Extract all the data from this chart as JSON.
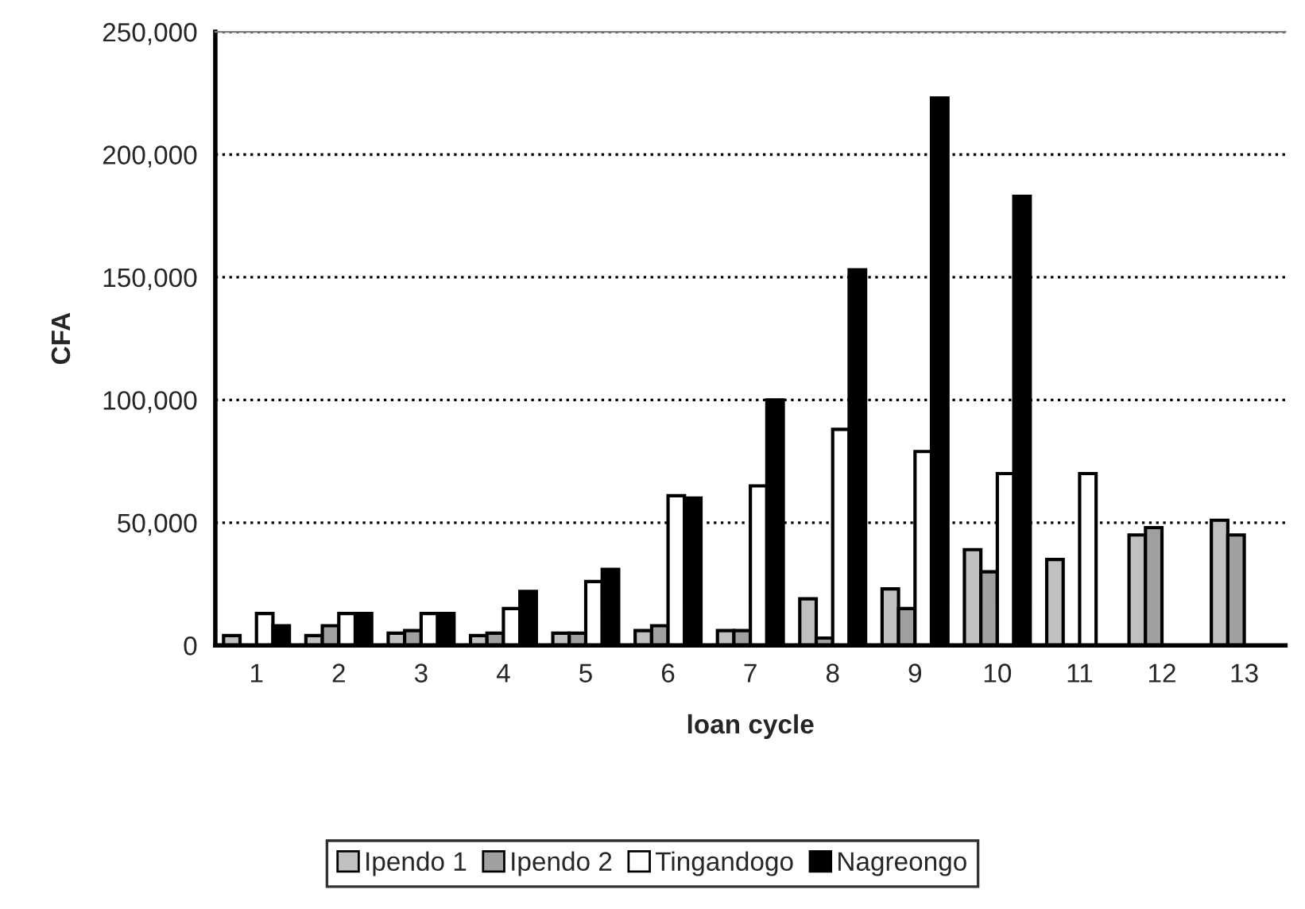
{
  "chart_data": {
    "type": "bar",
    "xlabel": "loan cycle",
    "ylabel": "CFA",
    "categories": [
      "1",
      "2",
      "3",
      "4",
      "5",
      "6",
      "7",
      "8",
      "9",
      "10",
      "11",
      "12",
      "13"
    ],
    "series": [
      {
        "name": "Ipendo 1",
        "color": "#c0c0c0",
        "values": [
          4000,
          4000,
          5000,
          4000,
          5000,
          6000,
          6000,
          19000,
          23000,
          39000,
          35000,
          45000,
          51000
        ]
      },
      {
        "name": "Ipendo 2",
        "color": "#a0a0a0",
        "values": [
          null,
          8000,
          6000,
          5000,
          5000,
          8000,
          6000,
          3000,
          15000,
          30000,
          null,
          48000,
          45000
        ]
      },
      {
        "name": "Tingandogo",
        "color": "#ffffff",
        "values": [
          13000,
          13000,
          13000,
          15000,
          26000,
          61000,
          65000,
          88000,
          79000,
          70000,
          70000,
          null,
          null
        ]
      },
      {
        "name": "Nagreongo",
        "color": "#000000",
        "values": [
          8000,
          13000,
          13000,
          22000,
          31000,
          60000,
          100000,
          153000,
          223000,
          183000,
          null,
          null,
          null
        ]
      }
    ],
    "ylim": [
      0,
      250000
    ],
    "yticks": [
      {
        "value": 0,
        "label": "0"
      },
      {
        "value": 50000,
        "label": "50,000"
      },
      {
        "value": 100000,
        "label": "100,000"
      },
      {
        "value": 150000,
        "label": "150,000"
      },
      {
        "value": 200000,
        "label": "200,000"
      },
      {
        "value": 250000,
        "label": "250,000"
      }
    ],
    "grid": "y",
    "legend": "bottom"
  }
}
